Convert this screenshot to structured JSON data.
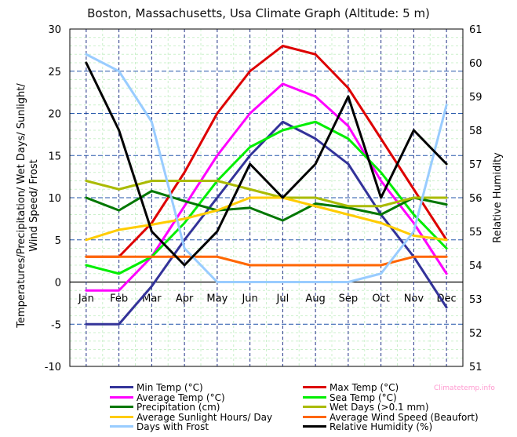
{
  "chart_data": {
    "type": "line",
    "title": "Boston, Massachusetts, Usa Climate Graph (Altitude: 5 m)",
    "ylabel": [
      "Temperatures/Precipitation/ Wet Days/ Sunlight/",
      "Wind Speed/ Frost"
    ],
    "y2label": "Relative Humidity",
    "categories": [
      "Jan",
      "Feb",
      "Mar",
      "Apr",
      "May",
      "Jun",
      "Jul",
      "Aug",
      "Sep",
      "Oct",
      "Nov",
      "Dec"
    ],
    "ylim": [
      -10,
      30
    ],
    "yticks": [
      -10,
      -5,
      0,
      5,
      10,
      15,
      20,
      25,
      30
    ],
    "y2lim": [
      51,
      61
    ],
    "y2ticks": [
      51,
      52,
      53,
      54,
      55,
      56,
      57,
      58,
      59,
      60,
      61
    ],
    "series": [
      {
        "name": "Min Temp (°C)",
        "color": "#333399",
        "axis": "left",
        "values": [
          -5,
          -5,
          -0.5,
          5,
          10,
          15,
          19,
          17,
          14,
          8,
          3,
          -3
        ]
      },
      {
        "name": "Max Temp (°C)",
        "color": "#dd0000",
        "axis": "left",
        "values": [
          3,
          3,
          7,
          13,
          20,
          25,
          28,
          27,
          23,
          17,
          11,
          5
        ]
      },
      {
        "name": "Average Temp (°C)",
        "color": "#ff00ff",
        "axis": "left",
        "values": [
          -1,
          -1,
          3,
          9,
          15,
          20,
          23.5,
          22,
          18.5,
          12,
          7,
          1
        ]
      },
      {
        "name": "Sea Temp (°C)",
        "color": "#00ee00",
        "axis": "left",
        "values": [
          2,
          1,
          3,
          7,
          12,
          16,
          18,
          19,
          17,
          13,
          8,
          4
        ]
      },
      {
        "name": "Precipitation (cm)",
        "color": "#007700",
        "axis": "left",
        "values": [
          10,
          8.5,
          10.8,
          9.6,
          8.5,
          8.8,
          7.3,
          9.3,
          8.8,
          8,
          10,
          9.2
        ]
      },
      {
        "name": "Wet Days (>0.1 mm)",
        "color": "#aabb00",
        "axis": "left",
        "values": [
          12,
          11,
          12,
          12,
          12,
          11,
          10,
          10,
          9,
          9,
          10,
          10
        ]
      },
      {
        "name": "Average Sunlight Hours/ Day",
        "color": "#ffcc00",
        "axis": "left",
        "values": [
          5,
          6.2,
          6.8,
          7.5,
          8.5,
          10,
          10,
          9,
          8,
          7,
          5.5,
          5
        ]
      },
      {
        "name": "Average Wind Speed (Beaufort)",
        "color": "#ff6600",
        "axis": "left",
        "values": [
          3,
          3,
          3,
          3,
          3,
          2,
          2,
          2,
          2,
          2,
          3,
          3
        ]
      },
      {
        "name": "Days with Frost",
        "color": "#99ccff",
        "axis": "left",
        "values": [
          27,
          25,
          19,
          4,
          0,
          0,
          0,
          0,
          0,
          1,
          6,
          21
        ]
      },
      {
        "name": "Relative Humidity (%)",
        "color": "#000000",
        "axis": "right",
        "values": [
          60,
          58,
          55,
          54,
          55,
          57,
          56,
          57,
          59,
          56,
          58,
          57
        ]
      }
    ],
    "grid": true,
    "legend_position": "bottom",
    "watermark": "Climatetemp.info"
  }
}
